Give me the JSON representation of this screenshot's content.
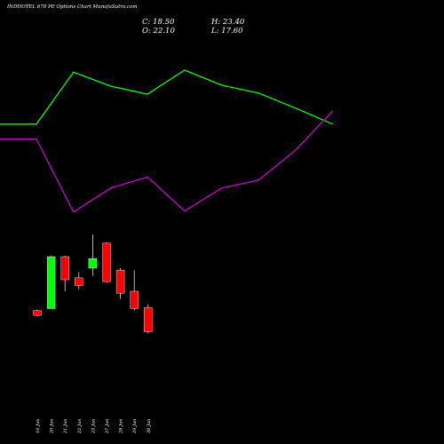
{
  "chart_data": {
    "type": "candlestick",
    "title": "INDHOTEL 670 PE Options Chart MunafaSutra.com",
    "ohlc_readout": {
      "close": "C: 18.50",
      "open": "O: 22.10",
      "high": "H: 23.40",
      "low": "L: 17.60"
    },
    "categories": [
      "19 Jun",
      "20 Jun",
      "21 Jun",
      "22 Jun",
      "23 Jun",
      "27 Jun",
      "28 Jun",
      "29 Jun",
      "30 Jun"
    ],
    "candles": [
      {
        "open": 34.0,
        "high": 34.5,
        "low": 31.0,
        "close": 31.5
      },
      {
        "open": 35.0,
        "high": 62.5,
        "low": 35.0,
        "close": 62.0
      },
      {
        "open": 62.0,
        "high": 62.5,
        "low": 44.0,
        "close": 50.0
      },
      {
        "open": 51.0,
        "high": 54.0,
        "low": 45.0,
        "close": 47.0
      },
      {
        "open": 56.0,
        "high": 73.5,
        "low": 52.0,
        "close": 61.0
      },
      {
        "open": 69.0,
        "high": 69.5,
        "low": 48.5,
        "close": 49.0
      },
      {
        "open": 55.0,
        "high": 56.0,
        "low": 40.0,
        "close": 43.0
      },
      {
        "open": 44.0,
        "high": 55.0,
        "low": 34.0,
        "close": 35.0
      },
      {
        "open": 35.5,
        "high": 37.0,
        "low": 22.0,
        "close": 23.0
      }
    ],
    "colors": {
      "up": "#00ff00",
      "down": "#ff0000",
      "background": "#000000",
      "text": "#ffffff"
    },
    "upper_band": {
      "color": "#00ff00",
      "x": [
        -1,
        0,
        1,
        2,
        3,
        4,
        5,
        6,
        7,
        8
      ],
      "values": [
        178,
        178,
        230,
        216,
        208,
        232,
        217,
        209,
        194,
        178
      ]
    },
    "lower_band": {
      "color": "#cc00cc",
      "x": [
        -1,
        0,
        1,
        2,
        3,
        4,
        5,
        6,
        7,
        8
      ],
      "values": [
        163,
        163,
        90,
        114,
        125,
        91,
        114,
        122,
        152,
        191
      ]
    }
  }
}
